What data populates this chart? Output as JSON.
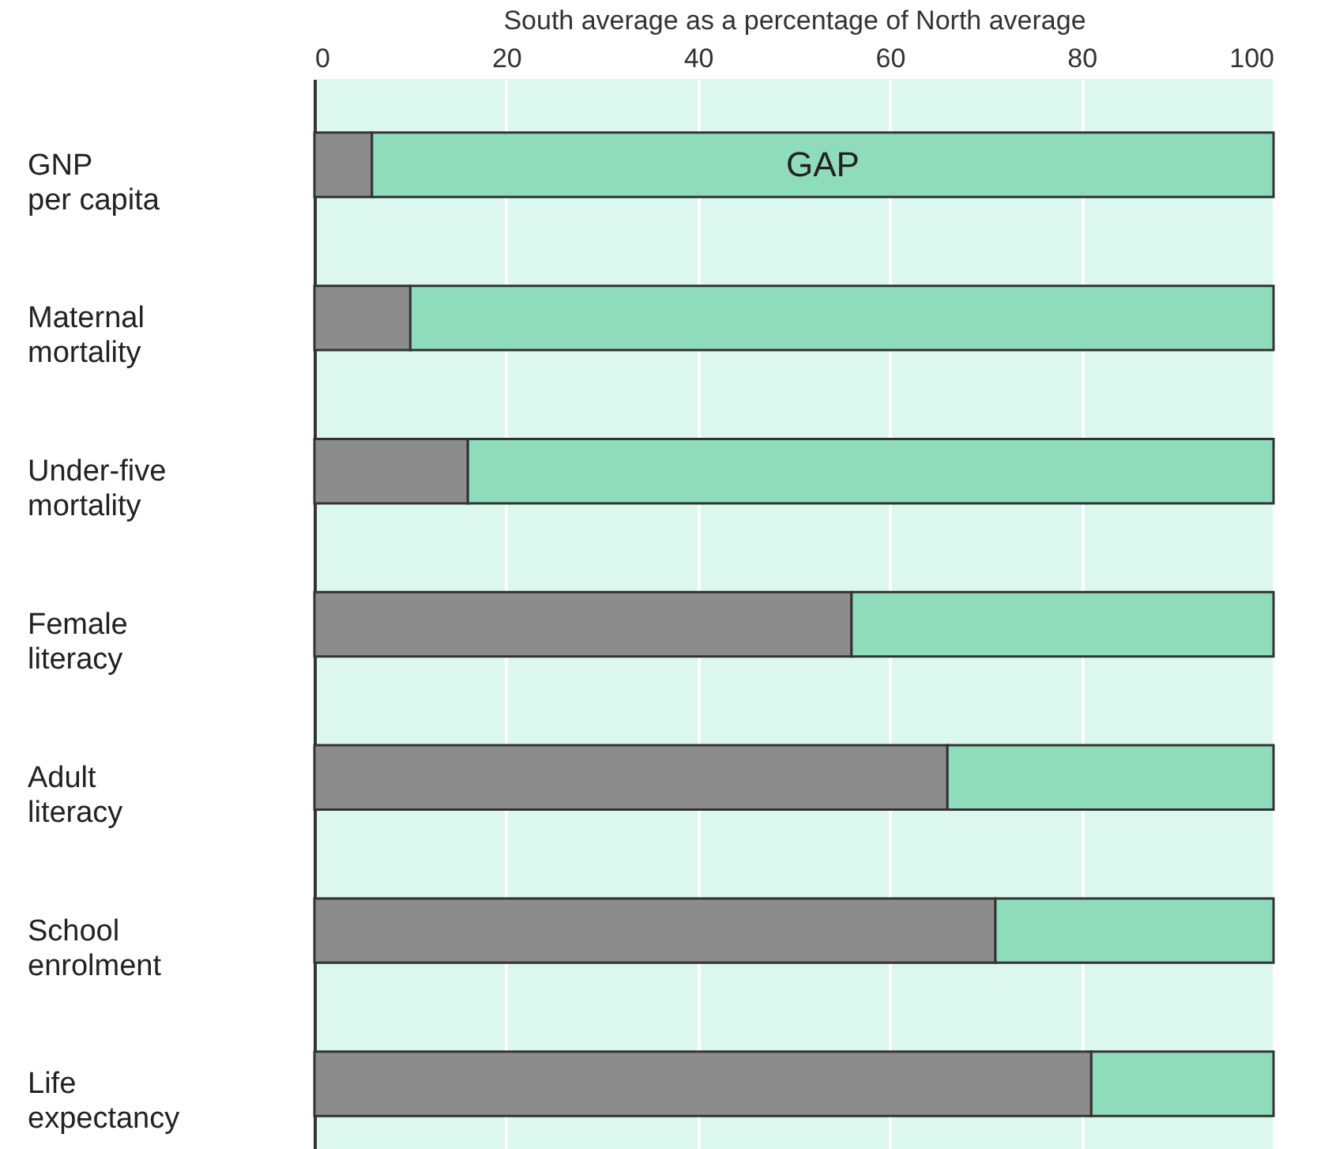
{
  "chart_data": {
    "type": "bar",
    "orientation": "horizontal",
    "stacked": true,
    "xlabel": "South average as a percentage of North average",
    "categories": [
      "GNP per capita",
      "Maternal mortality",
      "Under-five mortality",
      "Female literacy",
      "Adult literacy",
      "School enrolment",
      "Life expectancy"
    ],
    "series": [
      {
        "color": "#8c8c8c",
        "values": [
          6,
          10,
          16,
          56,
          66,
          71,
          81
        ]
      },
      {
        "color": "#8fdcbc",
        "values": [
          94,
          90,
          84,
          44,
          34,
          29,
          19
        ]
      }
    ],
    "xlim": [
      0,
      100
    ],
    "xticks": [
      0,
      20,
      40,
      60,
      80,
      100
    ],
    "grid": "x",
    "annotations": [
      "GAP"
    ]
  }
}
